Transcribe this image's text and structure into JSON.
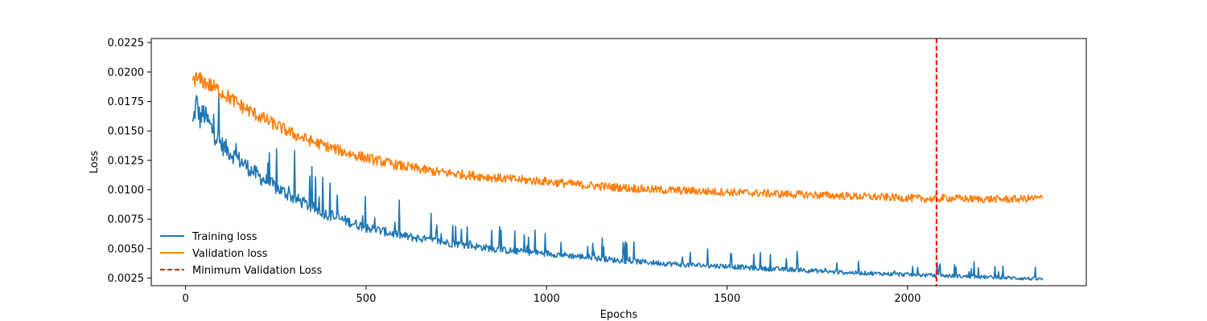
{
  "chart_data": {
    "type": "line",
    "title": "",
    "xlabel": "Epochs",
    "ylabel": "Loss",
    "xlim": [
      -95,
      2495
    ],
    "ylim": [
      0.00185,
      0.02285
    ],
    "xticks": [
      0,
      500,
      1000,
      1500,
      2000
    ],
    "xtick_labels": [
      "0",
      "500",
      "1000",
      "1500",
      "2000"
    ],
    "yticks": [
      0.0025,
      0.005,
      0.0075,
      0.01,
      0.0125,
      0.015,
      0.0175,
      0.02,
      0.0225
    ],
    "ytick_labels": [
      "0.0025",
      "0.0050",
      "0.0075",
      "0.0100",
      "0.0125",
      "0.0150",
      "0.0175",
      "0.0200",
      "0.0225"
    ],
    "legend_position": "lower-left",
    "series": [
      {
        "name": "Training loss",
        "color": "#1f77b4",
        "x": [
          20,
          30,
          40,
          50,
          75,
          100,
          150,
          200,
          250,
          300,
          350,
          400,
          450,
          500,
          600,
          700,
          800,
          900,
          1000,
          1100,
          1200,
          1300,
          1400,
          1500,
          1600,
          1700,
          1800,
          1900,
          2000,
          2080,
          2100,
          2200,
          2300,
          2375
        ],
        "y": [
          0.0155,
          0.0175,
          0.016,
          0.0165,
          0.015,
          0.0138,
          0.0125,
          0.0112,
          0.0102,
          0.0093,
          0.0085,
          0.0078,
          0.0073,
          0.0068,
          0.0061,
          0.0056,
          0.0052,
          0.0048,
          0.0046,
          0.0043,
          0.004,
          0.0038,
          0.0036,
          0.0035,
          0.0033,
          0.0032,
          0.003,
          0.0029,
          0.0028,
          0.0027,
          0.0027,
          0.0026,
          0.0025,
          0.0024
        ]
      },
      {
        "name": "Validation loss",
        "color": "#ff7f0e",
        "x": [
          20,
          50,
          100,
          150,
          200,
          250,
          300,
          350,
          400,
          450,
          500,
          600,
          700,
          800,
          900,
          1000,
          1100,
          1200,
          1300,
          1400,
          1500,
          1600,
          1700,
          1800,
          1900,
          2000,
          2080,
          2100,
          2200,
          2300,
          2375
        ],
        "y": [
          0.0195,
          0.0192,
          0.0183,
          0.0172,
          0.0163,
          0.0155,
          0.0147,
          0.0141,
          0.0136,
          0.0131,
          0.0127,
          0.012,
          0.0115,
          0.0112,
          0.0109,
          0.0107,
          0.0104,
          0.0102,
          0.01,
          0.0099,
          0.0098,
          0.0097,
          0.0096,
          0.0095,
          0.0094,
          0.0093,
          0.0092,
          0.0093,
          0.0092,
          0.0092,
          0.0093
        ]
      }
    ],
    "vline": {
      "name": "Minimum Validation Loss",
      "x": 2080,
      "color": "#ff0000",
      "style": "dashed"
    }
  }
}
